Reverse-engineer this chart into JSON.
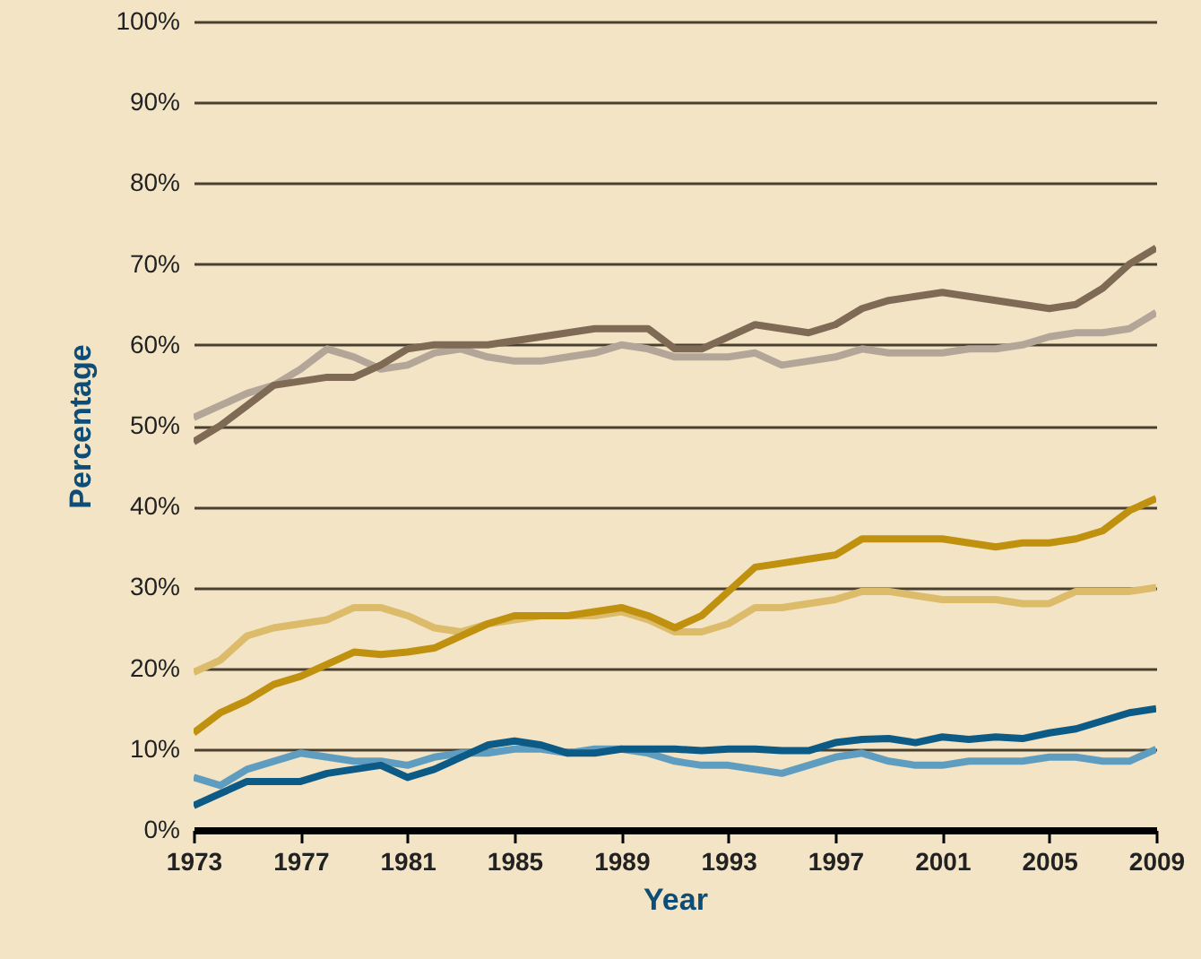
{
  "chart_data": {
    "type": "line",
    "xlabel": "Year",
    "ylabel": "Percentage",
    "x": [
      1973,
      1974,
      1975,
      1976,
      1977,
      1978,
      1979,
      1980,
      1981,
      1982,
      1983,
      1984,
      1985,
      1986,
      1987,
      1988,
      1989,
      1990,
      1991,
      1992,
      1993,
      1994,
      1995,
      1996,
      1997,
      1998,
      1999,
      2000,
      2001,
      2002,
      2003,
      2004,
      2005,
      2006,
      2007,
      2008,
      2009
    ],
    "series": [
      {
        "color": "#b3a698",
        "values": [
          51,
          52.5,
          54,
          55,
          57,
          59.5,
          58.5,
          57,
          57.5,
          59,
          59.5,
          58.5,
          58,
          58,
          58.5,
          59,
          60,
          59.5,
          58.5,
          58.5,
          58.5,
          59,
          57.5,
          58,
          58.5,
          59.5,
          59,
          59,
          59,
          59.5,
          59.5,
          60,
          61,
          61.5,
          61.5,
          62,
          64
        ]
      },
      {
        "color": "#7f6b55",
        "values": [
          48,
          50,
          52.5,
          55,
          55.5,
          56,
          56,
          57.5,
          59.5,
          60,
          60,
          60,
          60.5,
          61,
          61.5,
          62,
          62,
          62,
          59.5,
          59.5,
          61,
          62.5,
          62,
          61.5,
          62.5,
          64.5,
          65.5,
          66,
          66.5,
          66,
          65.5,
          65,
          64.5,
          65,
          67,
          70,
          72
        ]
      },
      {
        "color": "#dcbb6a",
        "values": [
          19.5,
          21,
          24,
          25,
          25.5,
          26,
          27.5,
          27.5,
          26.5,
          25,
          24.5,
          25.5,
          26,
          26.5,
          26.5,
          26.5,
          27,
          26,
          24.5,
          24.5,
          25.5,
          27.5,
          27.5,
          28,
          28.5,
          29.5,
          29.5,
          29,
          28.5,
          28.5,
          28.5,
          28,
          28,
          29.5,
          29.5,
          29.5,
          30
        ]
      },
      {
        "color": "#c0900f",
        "values": [
          12,
          14.5,
          16,
          18,
          19,
          20.5,
          22,
          21.7,
          22,
          22.5,
          24,
          25.5,
          26.5,
          26.5,
          26.5,
          27,
          27.5,
          26.5,
          25,
          26.5,
          29.5,
          32.5,
          33,
          33.5,
          34,
          36,
          36,
          36,
          36,
          35.5,
          35,
          35.5,
          35.5,
          36,
          37,
          39.5,
          41
        ]
      },
      {
        "color": "#5f9dc0",
        "values": [
          6.5,
          5.5,
          7.5,
          8.5,
          9.5,
          9,
          8.5,
          8.5,
          8,
          9,
          9.5,
          9.5,
          10,
          10,
          9.5,
          10,
          10,
          9.5,
          8.5,
          8,
          8,
          7.5,
          7,
          8,
          9,
          9.5,
          8.5,
          8,
          8,
          8.5,
          8.5,
          8.5,
          9,
          9,
          8.5,
          8.5,
          10
        ]
      },
      {
        "color": "#0c5a86",
        "values": [
          3,
          4.5,
          6,
          6,
          6,
          7,
          7.5,
          8,
          6.5,
          7.5,
          9,
          10.5,
          11,
          10.5,
          9.5,
          9.5,
          10,
          10,
          10,
          9.8,
          10,
          10,
          9.8,
          9.8,
          10.8,
          11.2,
          11.3,
          10.8,
          11.5,
          11.2,
          11.5,
          11.3,
          12,
          12.5,
          13.5,
          14.5,
          15
        ]
      }
    ],
    "xlim": [
      1973,
      2009
    ],
    "xticks": [
      1973,
      1977,
      1981,
      1985,
      1989,
      1993,
      1997,
      2001,
      2005,
      2009
    ],
    "ylim": [
      0,
      100
    ],
    "yticks": [
      {
        "value": 0,
        "label": "0%"
      },
      {
        "value": 10,
        "label": "10%"
      },
      {
        "value": 20,
        "label": "20%"
      },
      {
        "value": 30,
        "label": "30%"
      },
      {
        "value": 40,
        "label": "40%"
      },
      {
        "value": 50,
        "label": "50%"
      },
      {
        "value": 60,
        "label": "60%"
      },
      {
        "value": 70,
        "label": "70%"
      },
      {
        "value": 80,
        "label": "80%"
      },
      {
        "value": 90,
        "label": "90%"
      },
      {
        "value": 100,
        "label": "100%"
      }
    ],
    "grid": "y"
  }
}
